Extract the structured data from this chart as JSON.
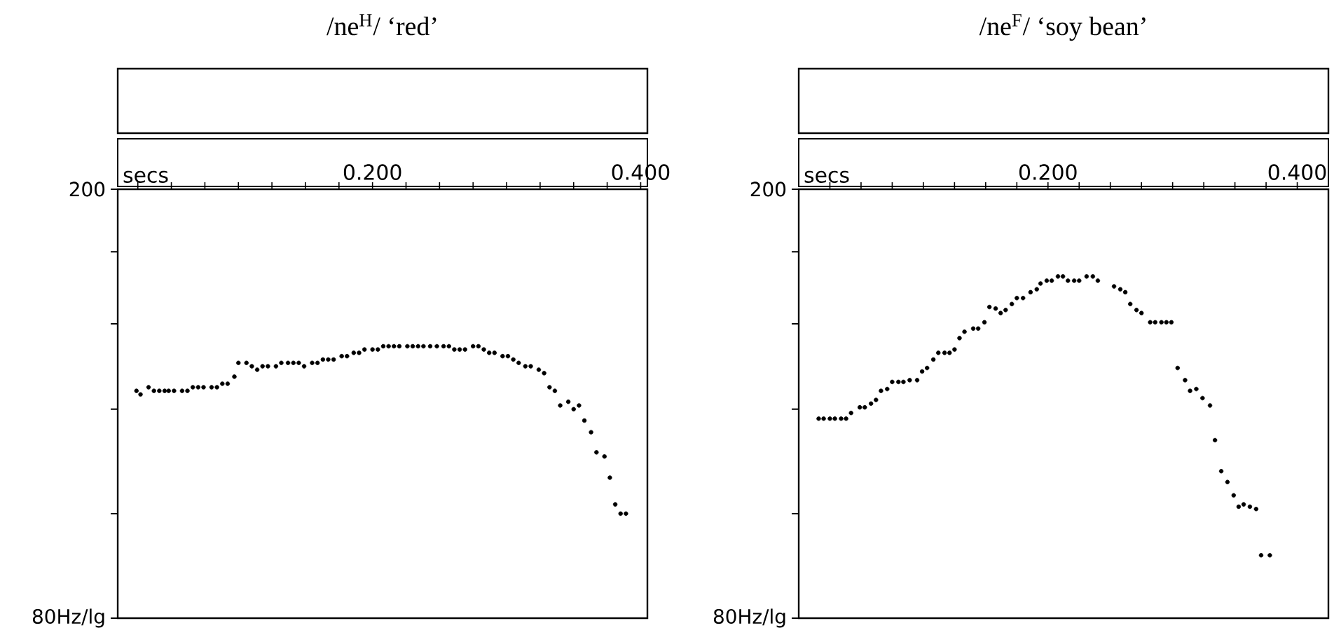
{
  "chart_data": [
    {
      "type": "scatter",
      "title": "/ne$^{H}$/ ‘red’",
      "xlabel": "secs",
      "color": "#000000",
      "marker": "circle",
      "log": "y",
      "xlim": [
        0.01,
        0.405
      ],
      "ylim": [
        80,
        200
      ],
      "xticks": [
        {
          "value": 0.025,
          "label": null
        },
        {
          "value": 0.05,
          "label": null
        },
        {
          "value": 0.075,
          "label": null
        },
        {
          "value": 0.1,
          "label": null
        },
        {
          "value": 0.125,
          "label": null
        },
        {
          "value": 0.15,
          "label": null
        },
        {
          "value": 0.175,
          "label": null
        },
        {
          "value": 0.2,
          "label": "0.200"
        },
        {
          "value": 0.225,
          "label": null
        },
        {
          "value": 0.25,
          "label": null
        },
        {
          "value": 0.275,
          "label": null
        },
        {
          "value": 0.3,
          "label": null
        },
        {
          "value": 0.325,
          "label": null
        },
        {
          "value": 0.35,
          "label": null
        },
        {
          "value": 0.375,
          "label": null
        },
        {
          "value": 0.4,
          "label": "0.400"
        }
      ],
      "yticks": [
        200,
        {
          "value": 175,
          "label": null
        },
        {
          "value": 150,
          "label": null
        },
        {
          "value": 125,
          "label": null
        },
        {
          "value": 100,
          "label": null
        },
        {
          "value": 80,
          "label": "80Hz/lg"
        }
      ],
      "x": [
        0.024,
        0.027,
        0.033,
        0.037,
        0.041,
        0.045,
        0.048,
        0.052,
        0.058,
        0.062,
        0.066,
        0.07,
        0.074,
        0.08,
        0.084,
        0.088,
        0.092,
        0.097,
        0.1,
        0.106,
        0.11,
        0.114,
        0.118,
        0.122,
        0.128,
        0.132,
        0.137,
        0.141,
        0.145,
        0.149,
        0.155,
        0.159,
        0.163,
        0.167,
        0.171,
        0.177,
        0.181,
        0.186,
        0.19,
        0.194,
        0.2,
        0.204,
        0.208,
        0.212,
        0.216,
        0.22,
        0.226,
        0.23,
        0.234,
        0.238,
        0.243,
        0.248,
        0.253,
        0.257,
        0.261,
        0.265,
        0.269,
        0.275,
        0.279,
        0.283,
        0.287,
        0.291,
        0.297,
        0.301,
        0.305,
        0.309,
        0.314,
        0.318,
        0.324,
        0.328,
        0.332,
        0.336,
        0.34,
        0.346,
        0.35,
        0.354,
        0.358,
        0.363,
        0.367,
        0.373,
        0.377,
        0.381,
        0.385,
        0.389
      ],
      "values": [
        130,
        129,
        131,
        130,
        130,
        130,
        130,
        130,
        130,
        130,
        131,
        131,
        131,
        131,
        131,
        132,
        132,
        134,
        138,
        138,
        137,
        136,
        137,
        137,
        137,
        138,
        138,
        138,
        138,
        137,
        138,
        138,
        139,
        139,
        139,
        140,
        140,
        141,
        141,
        142,
        142,
        142,
        143,
        143,
        143,
        143,
        143,
        143,
        143,
        143,
        143,
        143,
        143,
        143,
        142,
        142,
        142,
        143,
        143,
        142,
        141,
        141,
        140,
        140,
        139,
        138,
        137,
        137,
        136,
        135,
        131,
        130,
        126,
        127,
        125,
        126,
        122,
        119,
        114,
        113,
        108,
        102,
        100,
        100
      ]
    },
    {
      "type": "scatter",
      "title": "/ne$^{F}$/ ‘soy bean’",
      "xlabel": "secs",
      "color": "#000000",
      "marker": "circle",
      "log": "y",
      "xlim": [
        0.0,
        0.425
      ],
      "ylim": [
        80,
        200
      ],
      "xticks": [
        {
          "value": 0.025,
          "label": null
        },
        {
          "value": 0.05,
          "label": null
        },
        {
          "value": 0.075,
          "label": null
        },
        {
          "value": 0.1,
          "label": null
        },
        {
          "value": 0.125,
          "label": null
        },
        {
          "value": 0.15,
          "label": null
        },
        {
          "value": 0.175,
          "label": null
        },
        {
          "value": 0.2,
          "label": "0.200"
        },
        {
          "value": 0.225,
          "label": null
        },
        {
          "value": 0.25,
          "label": null
        },
        {
          "value": 0.275,
          "label": null
        },
        {
          "value": 0.3,
          "label": null
        },
        {
          "value": 0.325,
          "label": null
        },
        {
          "value": 0.35,
          "label": null
        },
        {
          "value": 0.375,
          "label": null
        },
        {
          "value": 0.4,
          "label": "0.400"
        }
      ],
      "yticks": [
        200,
        {
          "value": 175,
          "label": null
        },
        {
          "value": 150,
          "label": null
        },
        {
          "value": 125,
          "label": null
        },
        {
          "value": 100,
          "label": null
        },
        {
          "value": 80,
          "label": "80Hz/lg"
        }
      ],
      "x": [
        0.016,
        0.02,
        0.025,
        0.029,
        0.034,
        0.038,
        0.042,
        0.049,
        0.053,
        0.058,
        0.062,
        0.066,
        0.071,
        0.075,
        0.08,
        0.084,
        0.089,
        0.095,
        0.099,
        0.103,
        0.108,
        0.112,
        0.117,
        0.121,
        0.125,
        0.129,
        0.133,
        0.14,
        0.144,
        0.149,
        0.153,
        0.158,
        0.162,
        0.166,
        0.171,
        0.175,
        0.18,
        0.186,
        0.191,
        0.194,
        0.199,
        0.203,
        0.208,
        0.212,
        0.216,
        0.221,
        0.225,
        0.231,
        0.236,
        0.24,
        0.253,
        0.258,
        0.262,
        0.266,
        0.271,
        0.275,
        0.282,
        0.286,
        0.291,
        0.295,
        0.299,
        0.304,
        0.31,
        0.314,
        0.319,
        0.324,
        0.33,
        0.334,
        0.339,
        0.344,
        0.349,
        0.353,
        0.357,
        0.362,
        0.367,
        0.371,
        0.378
      ],
      "values": [
        122.5,
        122.5,
        122.5,
        122.5,
        122.5,
        122.5,
        124,
        125.5,
        125.5,
        126.5,
        127.5,
        130,
        130.5,
        132.5,
        132.5,
        132.5,
        133,
        133,
        135.5,
        136.5,
        139,
        141,
        141,
        141,
        142,
        145.5,
        147.5,
        148.5,
        148.5,
        150.5,
        155.5,
        155,
        153.5,
        154.5,
        156.5,
        158.5,
        158.5,
        160.5,
        161.5,
        163.5,
        164.5,
        164.5,
        166,
        166,
        164.5,
        164.5,
        164.5,
        166,
        166,
        164.5,
        162.5,
        161.5,
        160.5,
        156.5,
        154.5,
        153.5,
        150.5,
        150.5,
        150.5,
        150.5,
        150.5,
        136.5,
        133,
        130,
        130.5,
        128,
        126,
        117,
        109.5,
        107,
        104,
        101.5,
        102,
        101.5,
        101,
        91.5,
        91.5
      ]
    }
  ]
}
